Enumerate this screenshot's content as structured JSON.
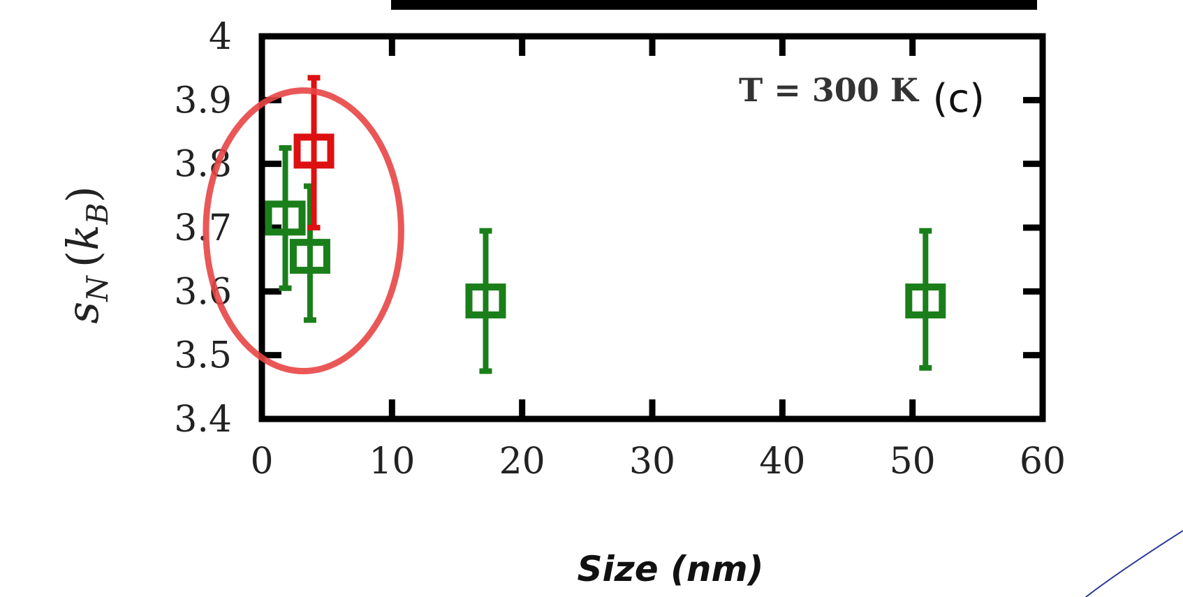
{
  "chart_data": {
    "type": "scatter",
    "title_fragment": "",
    "xlabel": "Size (nm)",
    "ylabel": "s_N (k_B)",
    "ylabel_main": "s",
    "ylabel_sub": "N",
    "ylabel_k": "k",
    "ylabel_ksub": "B",
    "xlim": [
      0,
      60
    ],
    "ylim": [
      3.4,
      4.0
    ],
    "x_ticks": [
      0,
      10,
      20,
      30,
      40,
      50,
      60
    ],
    "y_ticks": [
      3.4,
      3.5,
      3.6,
      3.7,
      3.8,
      3.9,
      4.0
    ],
    "x_tick_labels": [
      "0",
      "10",
      "20",
      "30",
      "40",
      "50",
      "60"
    ],
    "y_tick_labels": [
      "3.4",
      "3.5",
      "3.6",
      "3.7",
      "3.8",
      "3.9",
      "4"
    ],
    "grid": false,
    "annotations": [
      {
        "text": "T = 300 K"
      },
      {
        "text": "(c)"
      }
    ],
    "highlight": {
      "shape": "ellipse",
      "color": "#e84545",
      "center": [
        3.2,
        3.695
      ],
      "radius": [
        7.5,
        0.22
      ]
    },
    "series": [
      {
        "color": "#1a7f1a",
        "marker": "open-square",
        "points": [
          {
            "x": 1.8,
            "y": 3.715,
            "ymin": 3.605,
            "ymax": 3.825
          },
          {
            "x": 3.7,
            "y": 3.655,
            "ymin": 3.555,
            "ymax": 3.765
          },
          {
            "x": 17.2,
            "y": 3.585,
            "ymin": 3.475,
            "ymax": 3.695
          },
          {
            "x": 51.0,
            "y": 3.585,
            "ymin": 3.48,
            "ymax": 3.695
          }
        ]
      },
      {
        "color": "#dd1111",
        "marker": "open-square",
        "points": [
          {
            "x": 4.0,
            "y": 3.82,
            "ymin": 3.7,
            "ymax": 3.935
          }
        ]
      }
    ]
  }
}
